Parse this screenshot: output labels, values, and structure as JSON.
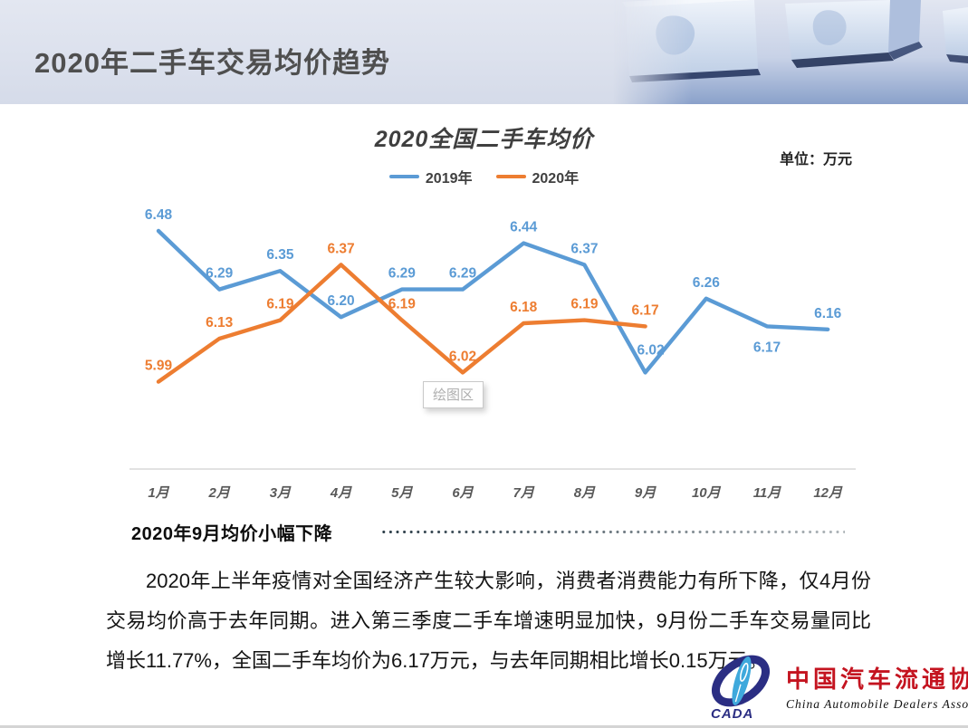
{
  "header": {
    "title": "2020年二手车交易均价趋势"
  },
  "chart": {
    "title": "2020全国二手车均价",
    "unit_label": "单位：万元",
    "plot_area_tooltip": "绘图区"
  },
  "chart_data": {
    "type": "line",
    "title": "2020全国二手车均价",
    "unit": "万元",
    "categories": [
      "1月",
      "2月",
      "3月",
      "4月",
      "5月",
      "6月",
      "7月",
      "8月",
      "9月",
      "10月",
      "11月",
      "12月"
    ],
    "series": [
      {
        "name": "2019年",
        "color": "#5B9BD5",
        "values": [
          6.48,
          6.29,
          6.35,
          6.2,
          6.29,
          6.29,
          6.44,
          6.37,
          6.02,
          6.26,
          6.17,
          6.16
        ]
      },
      {
        "name": "2020年",
        "color": "#ED7D31",
        "values": [
          5.99,
          6.13,
          6.19,
          6.37,
          6.19,
          6.02,
          6.18,
          6.19,
          6.17
        ]
      }
    ],
    "ylim": [
      5.9,
      6.6
    ],
    "grid": false,
    "data_labels": true,
    "legend_position": "top",
    "axis_color": "#d9d9d9",
    "tick_label_color": "#595959"
  },
  "analysis": {
    "heading": "2020年9月均价小幅下降",
    "body": "2020年上半年疫情对全国经济产生较大影响，消费者消费能力有所下降，仅4月份交易均价高于去年同期。进入第三季度二手车增速明显加快，9月份二手车交易量同比增长11.77%，全国二手车均价为6.17万元，与去年同期相比增长0.15万元。"
  },
  "footer_logo": {
    "acronym": "CADA",
    "name_cn": "中国汽车流通协会",
    "name_en": "China Automobile Dealers Association",
    "brand_red": "#c41420",
    "brand_navy": "#2b2e83",
    "brand_lightblue": "#3fa9dc"
  }
}
